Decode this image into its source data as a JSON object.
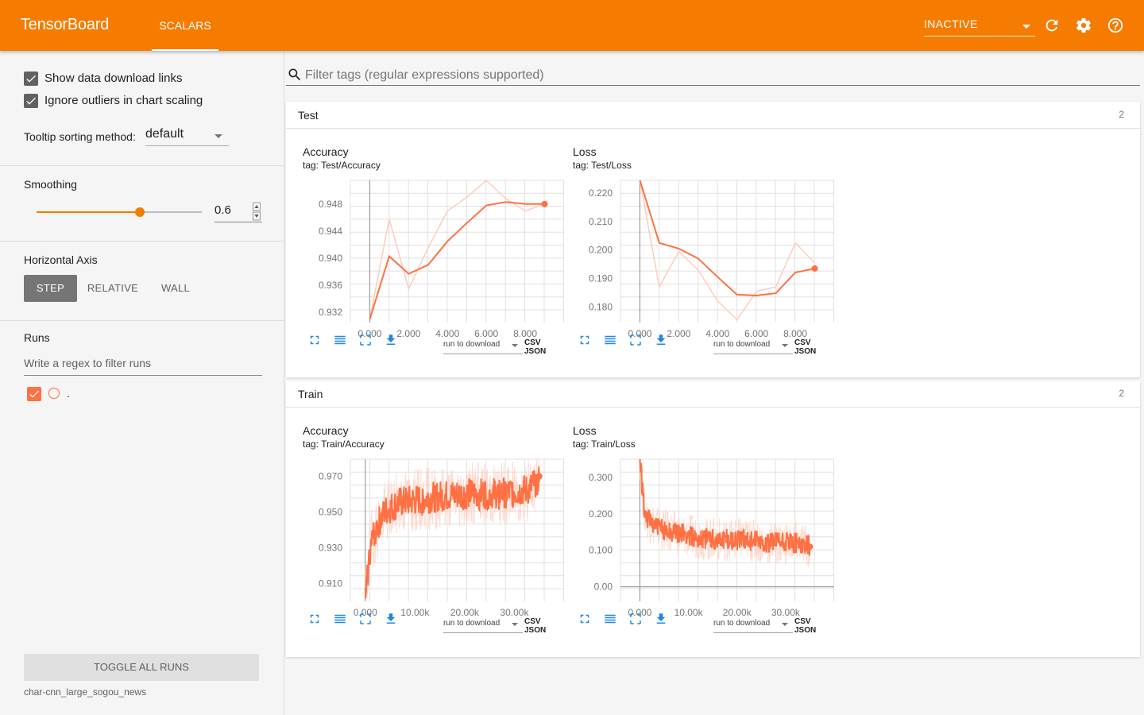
{
  "header": {
    "title": "TensorBoard",
    "tabs": [
      {
        "label": "SCALARS"
      }
    ],
    "run_selector": "INACTIVE",
    "icons": [
      "refresh-icon",
      "settings-icon",
      "help-icon"
    ],
    "accent_color": "#f57c00"
  },
  "sidebar": {
    "show_download_links": {
      "label": "Show data download links",
      "checked": true
    },
    "ignore_outliers": {
      "label": "Ignore outliers in chart scaling",
      "checked": true
    },
    "tooltip_sorting": {
      "label": "Tooltip sorting method:",
      "value": "default"
    },
    "smoothing": {
      "label": "Smoothing",
      "value": "0.6",
      "fraction": 0.6
    },
    "horizontal_axis": {
      "label": "Horizontal Axis",
      "options": [
        "STEP",
        "RELATIVE",
        "WALL"
      ],
      "selected": "STEP"
    },
    "runs": {
      "label": "Runs",
      "filter_placeholder": "Write a regex to filter runs",
      "items": [
        {
          "name": ".",
          "checked": true,
          "color": "#ff7043"
        }
      ]
    },
    "toggle_all_label": "TOGGLE ALL RUNS",
    "logdir": "char-cnn_large_sogou_news"
  },
  "main": {
    "filter_placeholder": "Filter tags (regular expressions supported)",
    "groups": [
      {
        "name": "Test",
        "count": "2",
        "cards": [
          {
            "title": "Accuracy",
            "tag": "tag: Test/Accuracy",
            "download_placeholder": "run to download",
            "formats": "CSV JSON"
          },
          {
            "title": "Loss",
            "tag": "tag: Test/Loss",
            "download_placeholder": "run to download",
            "formats": "CSV JSON"
          }
        ]
      },
      {
        "name": "Train",
        "count": "2",
        "cards": [
          {
            "title": "Accuracy",
            "tag": "tag: Train/Accuracy",
            "download_placeholder": "run to download",
            "formats": "CSV JSON"
          },
          {
            "title": "Loss",
            "tag": "tag: Train/Loss",
            "download_placeholder": "run to download",
            "formats": "CSV JSON"
          }
        ]
      }
    ]
  },
  "chart_data": [
    {
      "type": "line",
      "title": "Accuracy",
      "subtitle": "tag: Test/Accuracy",
      "x_ticks": [
        "0.000",
        "2.000",
        "4.000",
        "6.000",
        "8.000"
      ],
      "y_ticks": [
        "0.932",
        "0.936",
        "0.940",
        "0.944",
        "0.948"
      ],
      "xlim": [
        -1,
        10
      ],
      "ylim": [
        0.9305,
        0.9515
      ],
      "series": [
        {
          "role": "raw",
          "x": [
            0,
            1,
            2,
            3,
            4,
            5,
            6,
            7,
            8,
            9
          ],
          "y": [
            0.931,
            0.9458,
            0.9355,
            0.9415,
            0.947,
            0.949,
            0.9517,
            0.9488,
            0.947,
            0.948
          ]
        },
        {
          "role": "smoothed",
          "x": [
            0,
            1,
            2,
            3,
            4,
            5,
            6,
            7,
            8,
            9
          ],
          "y": [
            0.931,
            0.9403,
            0.9377,
            0.939,
            0.9425,
            0.9452,
            0.9478,
            0.9483,
            0.948,
            0.948
          ]
        }
      ],
      "color": "#ff7043"
    },
    {
      "type": "line",
      "title": "Loss",
      "subtitle": "tag: Test/Loss",
      "x_ticks": [
        "0.000",
        "2.000",
        "4.000",
        "6.000",
        "8.000"
      ],
      "y_ticks": [
        "0.180",
        "0.190",
        "0.200",
        "0.210",
        "0.220"
      ],
      "xlim": [
        -1,
        10
      ],
      "ylim": [
        0.1745,
        0.2245
      ],
      "series": [
        {
          "role": "raw",
          "x": [
            0,
            1,
            2,
            3,
            4,
            5,
            6,
            7,
            8,
            9
          ],
          "y": [
            0.2245,
            0.187,
            0.1995,
            0.193,
            0.182,
            0.1755,
            0.1855,
            0.187,
            0.2025,
            0.1955
          ]
        },
        {
          "role": "smoothed",
          "x": [
            0,
            1,
            2,
            3,
            4,
            5,
            6,
            7,
            8,
            9
          ],
          "y": [
            0.2245,
            0.2025,
            0.2005,
            0.197,
            0.1905,
            0.1843,
            0.184,
            0.1848,
            0.1921,
            0.1935
          ]
        }
      ],
      "color": "#ff7043"
    },
    {
      "type": "line",
      "title": "Accuracy",
      "subtitle": "tag: Train/Accuracy",
      "x_ticks": [
        "0.000",
        "10.00k",
        "20.00k",
        "30.00k"
      ],
      "y_ticks": [
        "0.910",
        "0.930",
        "0.950",
        "0.970"
      ],
      "xlim": [
        -3000,
        40000
      ],
      "ylim": [
        0.9,
        0.9795
      ],
      "series": [
        {
          "role": "raw",
          "x": [
            0,
            1000,
            2000,
            4000,
            7000,
            10000,
            14000,
            18000,
            22000,
            26000,
            30000,
            33000,
            35000
          ],
          "y": [
            0.9,
            0.93,
            0.94,
            0.95,
            0.955,
            0.956,
            0.958,
            0.959,
            0.96,
            0.96,
            0.961,
            0.962,
            0.97
          ]
        },
        {
          "role": "smoothed",
          "x": [
            0,
            1000,
            2000,
            4000,
            7000,
            10000,
            14000,
            18000,
            22000,
            26000,
            30000,
            33000,
            35000
          ],
          "y": [
            0.9,
            0.93,
            0.94,
            0.95,
            0.955,
            0.956,
            0.958,
            0.959,
            0.96,
            0.96,
            0.961,
            0.962,
            0.97
          ]
        }
      ],
      "color": "#ff7043"
    },
    {
      "type": "line",
      "title": "Loss",
      "subtitle": "tag: Train/Loss",
      "x_ticks": [
        "0.000",
        "10.00k",
        "20.00k",
        "30.00k"
      ],
      "y_ticks": [
        "0.00",
        "0.100",
        "0.200",
        "0.300"
      ],
      "xlim": [
        -4000,
        40000
      ],
      "ylim": [
        -0.04,
        0.35
      ],
      "series": [
        {
          "role": "raw",
          "x": [
            0,
            1000,
            2000,
            4000,
            7000,
            10000,
            14000,
            18000,
            22000,
            26000,
            30000,
            33000,
            35000
          ],
          "y": [
            0.35,
            0.2,
            0.18,
            0.16,
            0.15,
            0.14,
            0.13,
            0.13,
            0.13,
            0.12,
            0.12,
            0.12,
            0.11
          ]
        },
        {
          "role": "smoothed",
          "x": [
            0,
            1000,
            2000,
            4000,
            7000,
            10000,
            14000,
            18000,
            22000,
            26000,
            30000,
            33000,
            35000
          ],
          "y": [
            0.35,
            0.2,
            0.18,
            0.16,
            0.15,
            0.14,
            0.13,
            0.13,
            0.13,
            0.12,
            0.12,
            0.12,
            0.11
          ]
        }
      ],
      "color": "#ff7043"
    }
  ]
}
